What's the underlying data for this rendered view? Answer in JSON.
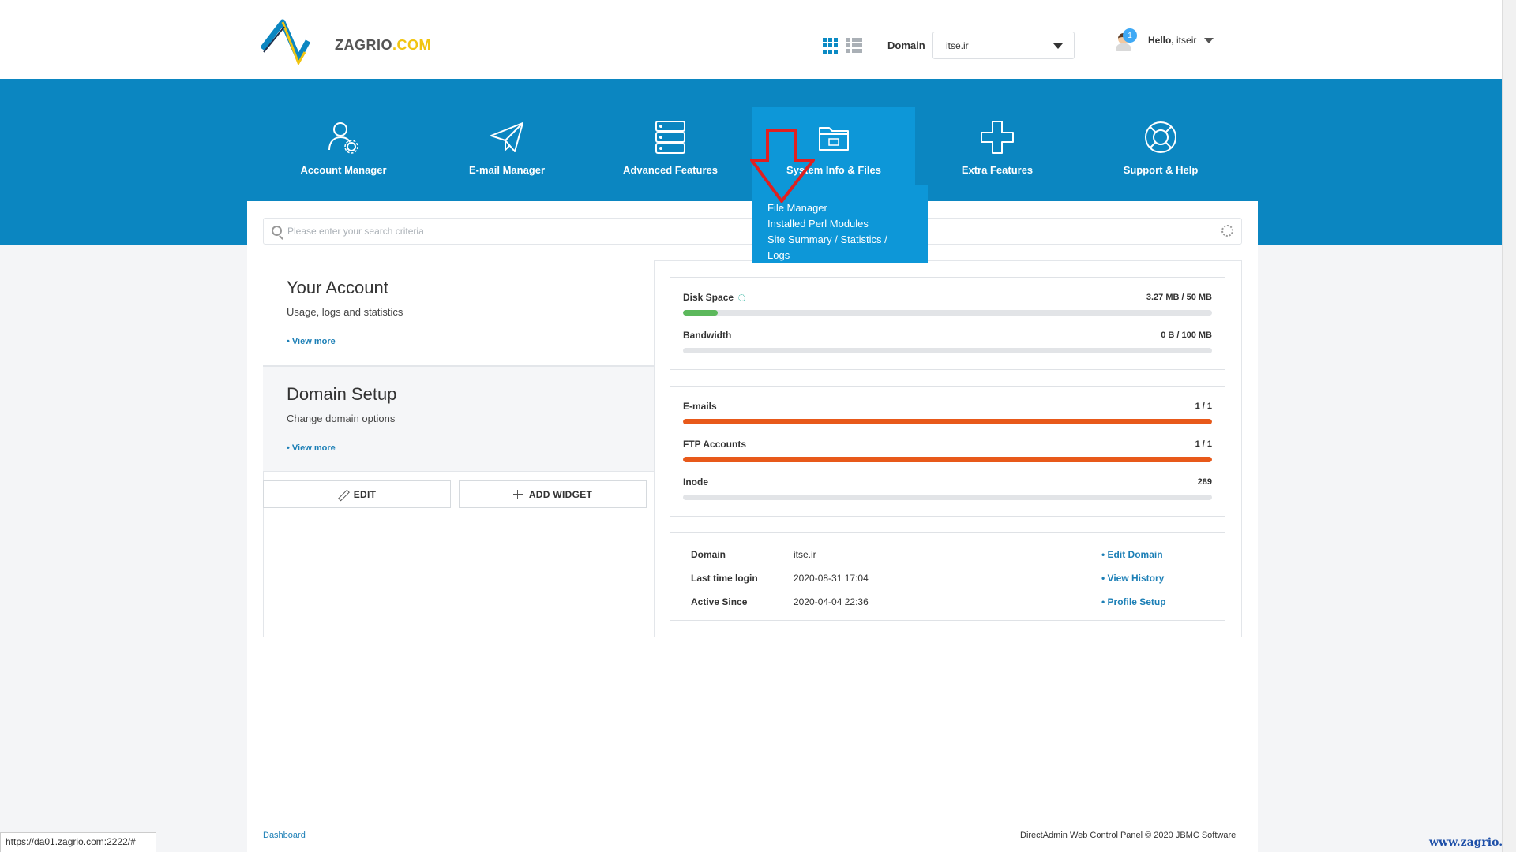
{
  "brand": {
    "logo_text": "ZAGRIO",
    "logo_suffix": ".COM"
  },
  "header": {
    "domain_label": "Domain",
    "domain_value": "itse.ir",
    "notification_count": "1",
    "greeting": "Hello,",
    "username": "itseir"
  },
  "nav": [
    {
      "label": "Account Manager",
      "icon": "account-manager-icon"
    },
    {
      "label": "E-mail Manager",
      "icon": "paper-plane-icon"
    },
    {
      "label": "Advanced Features",
      "icon": "server-icon"
    },
    {
      "label": "System Info & Files",
      "icon": "folder-icon"
    },
    {
      "label": "Extra Features",
      "icon": "plus-icon"
    },
    {
      "label": "Support & Help",
      "icon": "lifebuoy-icon"
    }
  ],
  "dropdown": {
    "items": [
      "File Manager",
      "Installed Perl Modules",
      "Site Summary / Statistics / Logs"
    ]
  },
  "search": {
    "placeholder": "Please enter your search criteria"
  },
  "widgets": [
    {
      "title": "Your Account",
      "subtitle": "Usage, logs and statistics",
      "link": "• View more"
    },
    {
      "title": "Domain Setup",
      "subtitle": "Change domain options",
      "link": "• View more"
    }
  ],
  "buttons": {
    "edit": "EDIT",
    "add_widget": "ADD WIDGET"
  },
  "usage": [
    {
      "name": "Disk Space",
      "value": "3.27 MB / 50 MB",
      "percent": 6.5,
      "color": "#5cb85c"
    },
    {
      "name": "Bandwidth",
      "value": "0 B / 100 MB",
      "percent": 0,
      "color": "#5cb85c"
    }
  ],
  "counts": [
    {
      "name": "E-mails",
      "value": "1 / 1",
      "percent": 100,
      "color": "#e8591a"
    },
    {
      "name": "FTP Accounts",
      "value": "1 / 1",
      "percent": 100,
      "color": "#e8591a"
    },
    {
      "name": "Inode",
      "value": "289",
      "percent": 0,
      "color": "#e8591a"
    }
  ],
  "info": [
    {
      "key": "Domain",
      "value": "itse.ir",
      "link": "• Edit Domain"
    },
    {
      "key": "Last time login",
      "value": "2020-08-31 17:04",
      "link": "• View History"
    },
    {
      "key": "Active Since",
      "value": "2020-04-04 22:36",
      "link": "• Profile Setup"
    }
  ],
  "footer": {
    "breadcrumb": "Dashboard",
    "copyright": "DirectAdmin Web Control Panel © 2020 JBMC Software"
  },
  "statusbar": "https://da01.zagrio.com:2222/#",
  "watermark": "www.zagrio.com",
  "colors": {
    "primary": "#0b86c1",
    "active": "#0d97d8",
    "link": "#1c7fb6",
    "overlay_arrow": "#e02020"
  }
}
